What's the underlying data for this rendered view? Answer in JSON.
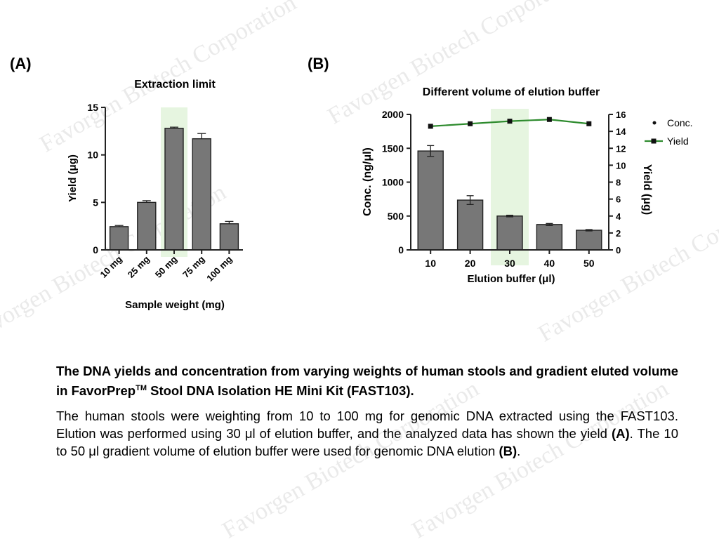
{
  "watermark": "Favorgen Biotech Corporation",
  "panels": {
    "a_label": "(A)",
    "b_label": "(B)"
  },
  "chart_data": [
    {
      "type": "bar",
      "title": "Extraction limit",
      "xlabel": "Sample weight (mg)",
      "ylabel": "Yield (μg)",
      "categories": [
        "10 mg",
        "25 mg",
        "50 mg",
        "75 mg",
        "100 mg"
      ],
      "values": [
        2.45,
        5.0,
        12.8,
        11.7,
        2.75
      ],
      "errors": [
        0.12,
        0.18,
        0.12,
        0.55,
        0.25
      ],
      "ylim": [
        0,
        15
      ],
      "yticks": [
        "0",
        "5",
        "10",
        "15"
      ],
      "highlight_category": "50 mg",
      "bar_color": "#777777",
      "highlight_color": "#e6f5e0"
    },
    {
      "type": "bar+line",
      "title": "Different volume of elution buffer",
      "xlabel": "Elution buffer (μl)",
      "ylabel": "Conc. (ng/μl)",
      "ylabel_right": "Yield (μg)",
      "categories": [
        "10",
        "20",
        "30",
        "40",
        "50"
      ],
      "series": [
        {
          "name": "Conc.",
          "type": "bar",
          "axis": "left",
          "values": [
            1460,
            735,
            500,
            375,
            290
          ],
          "errors": [
            80,
            65,
            12,
            15,
            10
          ]
        },
        {
          "name": "Yield",
          "type": "line",
          "axis": "right",
          "values": [
            14.6,
            14.9,
            15.2,
            15.4,
            14.9
          ]
        }
      ],
      "ylim": [
        0,
        2000
      ],
      "ylim_right": [
        0,
        16
      ],
      "yticks": [
        "0",
        "500",
        "1000",
        "1500",
        "2000"
      ],
      "yticks_right": [
        "0",
        "2",
        "4",
        "6",
        "8",
        "10",
        "12",
        "14",
        "16"
      ],
      "legend": [
        "Conc.",
        "Yield"
      ],
      "legend_position": "right",
      "highlight_category": "30",
      "bar_color": "#777777",
      "line_color": "#2e8b2e",
      "highlight_color": "#e6f5e0"
    }
  ],
  "caption": {
    "title_part1": "The DNA yields and concentration from varying weights of human stools and gradient eluted volume in FavorPrep",
    "title_sup": "TM",
    "title_part2": " Stool DNA Isolation HE Mini Kit (FAST103).",
    "body_part1": "The human stools were weighting from 10 to 100 mg for genomic DNA extracted using the FAST103. Elution was performed using 30 μl of elution buffer, and the analyzed data has shown the yield ",
    "body_bold1": "(A)",
    "body_part2": ". The 10 to 50 μl gradient volume of elution buffer were used for genomic DNA elution ",
    "body_bold2": "(B)",
    "body_part3": "."
  }
}
